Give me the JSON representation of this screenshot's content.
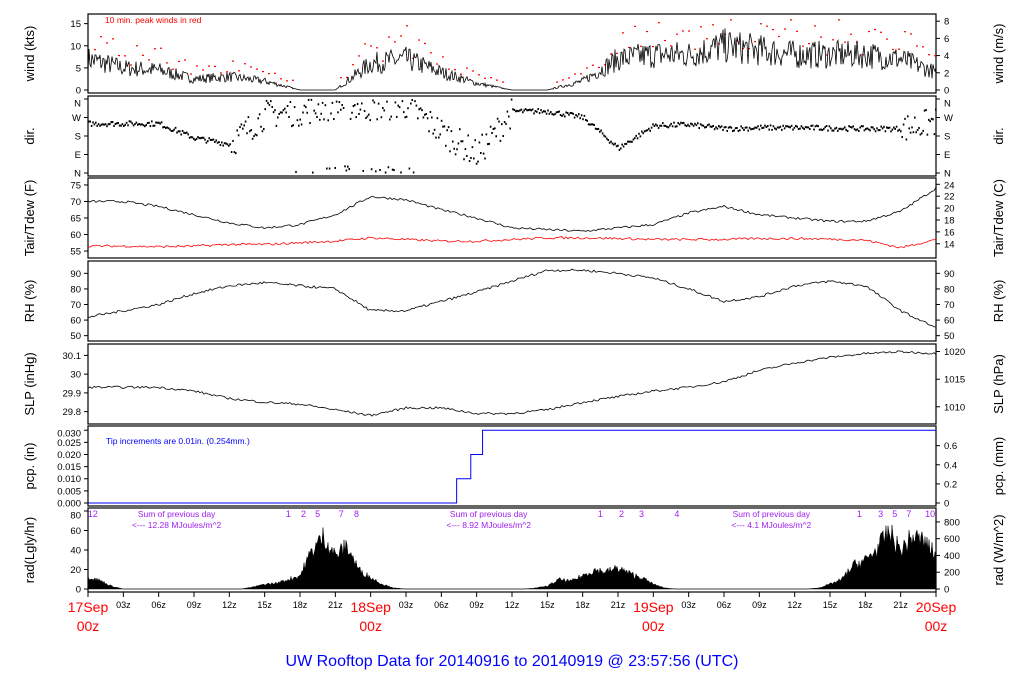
{
  "title": "UW Rooftop Data for 20140916  to  20140919 @ 23:57:56  (UTC)",
  "colors": {
    "title": "#0000ff",
    "peak": "#ff0000",
    "dew": "#ff0000",
    "pcp": "#0000ff",
    "rad_text": "#a020f0",
    "day": "#ff0000",
    "line": "#000000"
  },
  "chart_data": [
    {
      "type": "line",
      "id": "wind",
      "ylabel": "wind (kts)",
      "ylabel_right": "wind (m/s)",
      "annotation": "10 min. peak winds in red",
      "ylim": [
        0,
        16.5
      ],
      "yticks": [
        0,
        5,
        10,
        15
      ],
      "yticks_right": [
        {
          "label": "0",
          "v": 0
        },
        {
          "label": "2",
          "v": 3.89
        },
        {
          "label": "4",
          "v": 7.78
        },
        {
          "label": "6",
          "v": 11.66
        },
        {
          "label": "8",
          "v": 15.55
        }
      ],
      "x_hours": [
        0,
        3,
        6,
        9,
        12,
        15,
        18,
        21,
        24,
        27,
        30,
        33,
        36,
        39,
        42,
        45,
        48,
        51,
        54,
        57,
        60,
        63,
        66,
        69,
        72
      ],
      "series": [
        {
          "name": "wind speed",
          "values": [
            7,
            5,
            4.5,
            2.5,
            3,
            2,
            0,
            0,
            6,
            7,
            4,
            1.5,
            0,
            0,
            2,
            7,
            8,
            8,
            10,
            9,
            8,
            8,
            8,
            7,
            4
          ]
        }
      ]
    },
    {
      "type": "scatter",
      "id": "dir",
      "ylabel": "dir.",
      "ylabel_right": "dir.",
      "ylim": [
        0,
        360
      ],
      "yticks": [
        {
          "label": "N",
          "v": 0
        },
        {
          "label": "E",
          "v": 90
        },
        {
          "label": "S",
          "v": 180
        },
        {
          "label": "W",
          "v": 270
        },
        {
          "label": "N",
          "v": 360
        }
      ],
      "x_hours": [
        0,
        3,
        6,
        9,
        12,
        15,
        18,
        21,
        24,
        27,
        30,
        33,
        36,
        39,
        42,
        45,
        48,
        51,
        54,
        57,
        60,
        63,
        66,
        69,
        72
      ],
      "series": [
        {
          "name": "wind direction (deg)",
          "values": [
            240,
            240,
            240,
            170,
            140,
            285,
            300,
            330,
            320,
            330,
            200,
            90,
            300,
            300,
            270,
            120,
            230,
            235,
            215,
            220,
            220,
            218,
            215,
            215,
            250
          ]
        }
      ]
    },
    {
      "type": "line",
      "id": "temp",
      "ylabel": "Tair/Tdew (F)",
      "ylabel_right": "Tair/Tdew (C)",
      "ylim": [
        53.8,
        76.2
      ],
      "yticks": [
        55,
        60,
        65,
        70,
        75
      ],
      "yticks_right": [
        {
          "label": "14",
          "v": 57.2
        },
        {
          "label": "16",
          "v": 60.8
        },
        {
          "label": "18",
          "v": 64.4
        },
        {
          "label": "20",
          "v": 68
        },
        {
          "label": "22",
          "v": 71.6
        },
        {
          "label": "24",
          "v": 75.2
        }
      ],
      "x_hours": [
        0,
        3,
        6,
        9,
        12,
        15,
        18,
        21,
        24,
        27,
        30,
        33,
        36,
        39,
        42,
        45,
        48,
        51,
        54,
        57,
        60,
        63,
        66,
        69,
        72
      ],
      "series": [
        {
          "name": "Tair",
          "values": [
            70,
            70,
            68.5,
            66,
            63.5,
            62,
            63,
            66,
            71.5,
            70.5,
            67.5,
            65,
            62,
            61.5,
            61,
            62,
            63,
            66.5,
            68.5,
            66,
            65,
            64,
            64,
            67,
            74
          ]
        },
        {
          "name": "Tdew",
          "values": [
            56.5,
            56.5,
            56.3,
            56.5,
            57,
            57,
            57.5,
            58,
            59,
            58.5,
            58,
            58,
            58.5,
            59,
            59,
            58.8,
            58.5,
            58.5,
            58.5,
            58.8,
            58.8,
            58.6,
            58.3,
            56,
            58.5
          ]
        }
      ]
    },
    {
      "type": "line",
      "id": "rh",
      "ylabel": "RH (%)",
      "ylabel_right": "RH (%)",
      "ylim": [
        48.5,
        96
      ],
      "yticks": [
        50,
        60,
        70,
        80,
        90
      ],
      "yticks_right": [
        {
          "label": "50",
          "v": 50
        },
        {
          "label": "60",
          "v": 60
        },
        {
          "label": "70",
          "v": 70
        },
        {
          "label": "80",
          "v": 80
        },
        {
          "label": "90",
          "v": 90
        }
      ],
      "x_hours": [
        0,
        3,
        6,
        9,
        12,
        15,
        18,
        21,
        24,
        27,
        30,
        33,
        36,
        39,
        42,
        45,
        48,
        51,
        54,
        57,
        60,
        63,
        66,
        69,
        72
      ],
      "series": [
        {
          "name": "RH",
          "values": [
            62,
            66,
            70,
            77,
            82,
            84,
            82,
            80,
            66,
            66,
            72,
            78,
            85,
            92,
            92,
            90,
            87,
            80,
            72,
            75,
            82,
            85,
            82,
            66,
            55
          ]
        }
      ]
    },
    {
      "type": "line",
      "id": "slp",
      "ylabel": "SLP (inHg)",
      "ylabel_right": "SLP (hPa)",
      "ylim": [
        29.75,
        30.145
      ],
      "yticks": [
        29.8,
        29.9,
        30.0,
        30.1
      ],
      "yticks_right": [
        {
          "label": "1010",
          "v": 29.826
        },
        {
          "label": "1015",
          "v": 29.973
        },
        {
          "label": "1020",
          "v": 30.121
        }
      ],
      "x_hours": [
        0,
        3,
        6,
        9,
        12,
        15,
        18,
        21,
        24,
        27,
        30,
        33,
        36,
        39,
        42,
        45,
        48,
        51,
        54,
        57,
        60,
        63,
        66,
        69,
        72
      ],
      "series": [
        {
          "name": "SLP",
          "values": [
            29.93,
            29.93,
            29.93,
            29.91,
            29.87,
            29.85,
            29.84,
            29.81,
            29.78,
            29.82,
            29.82,
            29.79,
            29.79,
            29.81,
            29.85,
            29.88,
            29.91,
            29.93,
            29.96,
            30.02,
            30.06,
            30.09,
            30.11,
            30.12,
            30.11
          ]
        }
      ]
    },
    {
      "type": "line",
      "id": "pcp",
      "ylabel": "pcp. (in)",
      "ylabel_right": "pcp. (mm)",
      "annotation": "Tip increments are 0.01in. (0.254mm.)",
      "ylim": [
        0,
        0.0305
      ],
      "yticks": [
        0,
        0.005,
        0.01,
        0.015,
        0.02,
        0.025,
        0.03
      ],
      "ytick_labels": [
        "0.000",
        "0.005",
        "0.010",
        "0.015",
        "0.020",
        "0.025",
        "0.030"
      ],
      "yticks_right": [
        {
          "label": "0",
          "v": 0
        },
        {
          "label": "0.2",
          "v": 0.00787
        },
        {
          "label": "0.4",
          "v": 0.01575
        },
        {
          "label": "0.6",
          "v": 0.02362
        }
      ],
      "x_hours": [
        0,
        31.0,
        31.3,
        32.5,
        33.5,
        72
      ],
      "series": [
        {
          "name": "accumulated precip",
          "values": [
            0,
            0,
            0.01,
            0.02,
            0.03,
            0.03
          ]
        }
      ]
    },
    {
      "type": "area",
      "id": "rad",
      "ylabel": "rad(Lgly/hr)",
      "ylabel_right": "rad (W/m^2)",
      "ylim": [
        0,
        80
      ],
      "yticks": [
        0,
        20,
        40,
        60,
        80
      ],
      "yticks_right": [
        {
          "label": "0",
          "v": 0
        },
        {
          "label": "200",
          "v": 17.2
        },
        {
          "label": "400",
          "v": 34.4
        },
        {
          "label": "600",
          "v": 51.6
        },
        {
          "label": "800",
          "v": 68.8
        }
      ],
      "x_hours_step": 1,
      "series": [
        {
          "name": "solar radiation",
          "values": [
            13,
            9,
            3,
            0,
            0,
            0,
            0,
            0,
            0,
            0,
            0,
            0,
            0,
            0,
            2,
            5,
            6,
            10,
            14,
            40,
            55,
            35,
            45,
            20,
            12,
            5,
            1,
            0,
            0,
            0,
            0,
            0,
            0,
            0,
            0,
            0,
            0,
            0,
            1,
            3,
            10,
            8,
            14,
            20,
            18,
            22,
            16,
            12,
            5,
            1,
            0,
            0,
            0,
            0,
            0,
            0,
            0,
            0,
            0,
            0,
            0,
            0,
            1,
            5,
            10,
            25,
            30,
            42,
            60,
            40,
            55,
            50,
            35
          ]
        }
      ],
      "hour_marks": [
        {
          "label": "12",
          "h": 0.4
        },
        {
          "label": "1",
          "h": 17
        },
        {
          "label": "2",
          "h": 18.3
        },
        {
          "label": "5",
          "h": 19.5
        },
        {
          "label": "7",
          "h": 21.5
        },
        {
          "label": "8",
          "h": 22.8
        },
        {
          "label": "1",
          "h": 43.5
        },
        {
          "label": "2",
          "h": 45.3
        },
        {
          "label": "3",
          "h": 47
        },
        {
          "label": "4",
          "h": 50
        },
        {
          "label": "1",
          "h": 65.5
        },
        {
          "label": "3",
          "h": 67.3
        },
        {
          "label": "5",
          "h": 68.5
        },
        {
          "label": "7",
          "h": 69.7
        },
        {
          "label": "10",
          "h": 71.5
        }
      ],
      "daily_sums": [
        {
          "line1": "Sum of previous day",
          "line2": "<--- 12.28 MJoules/m^2",
          "h": 6.5
        },
        {
          "line1": "Sum of previous day",
          "line2": "<--- 8.92 MJoules/m^2",
          "h": 33
        },
        {
          "line1": "Sum of previous day",
          "line2": "<--- 4.1 MJoules/m^2",
          "h": 57
        }
      ]
    }
  ],
  "xaxis": {
    "hour_ticks": [
      "03z",
      "06z",
      "09z",
      "12z",
      "15z",
      "18z",
      "21z"
    ],
    "days": [
      {
        "label": "17Sep",
        "sub": "00z",
        "h": 0
      },
      {
        "label": "18Sep",
        "sub": "00z",
        "h": 24
      },
      {
        "label": "19Sep",
        "sub": "00z",
        "h": 48
      },
      {
        "label": "20Sep",
        "sub": "00z",
        "h": 72
      }
    ]
  }
}
